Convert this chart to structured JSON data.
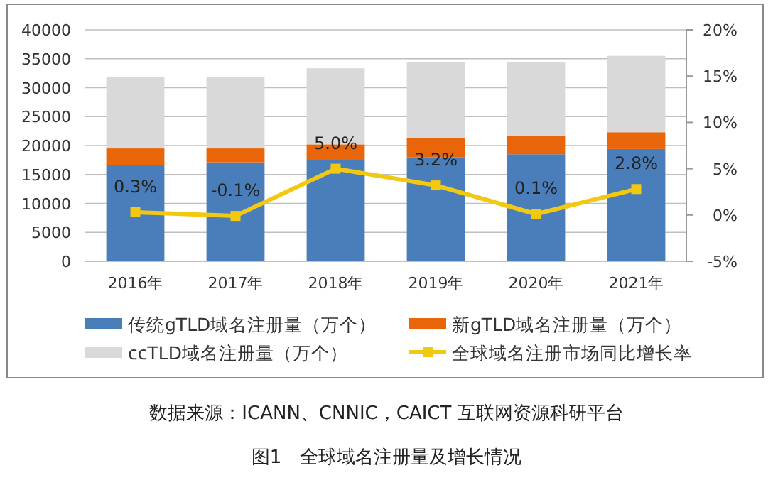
{
  "chart_data": {
    "type": "bar",
    "title": "图1　全球域名注册量及增长情况",
    "annotations": [
      "数据来源：ICANN、CNNIC，CAICT 互联网资源科研平台"
    ],
    "categories": [
      "2016年",
      "2017年",
      "2018年",
      "2019年",
      "2020年",
      "2021年"
    ],
    "stacked": true,
    "grid": "y",
    "legend": "bottom",
    "ylim": [
      0,
      40000
    ],
    "yticks": [
      0,
      5000,
      10000,
      15000,
      20000,
      25000,
      30000,
      35000,
      40000
    ],
    "y2lim": [
      -5,
      20
    ],
    "y2ticks": [
      {
        "value": -5,
        "label": "-5%"
      },
      {
        "value": 0,
        "label": "0%"
      },
      {
        "value": 5,
        "label": "5%"
      },
      {
        "value": 10,
        "label": "10%"
      },
      {
        "value": 15,
        "label": "15%"
      },
      {
        "value": 20,
        "label": "20%"
      }
    ],
    "series": [
      {
        "name": "传统gTLD域名注册量（万个）",
        "color": "#4a7ebb",
        "values": [
          16600,
          17100,
          17500,
          18000,
          18500,
          19400
        ]
      },
      {
        "name": "新gTLD域名注册量（万个）",
        "color": "#e8650a",
        "values": [
          2900,
          2400,
          2700,
          3300,
          3150,
          2900
        ]
      },
      {
        "name": "ccTLD域名注册量（万个）",
        "color": "#d9d9d9",
        "values": [
          12300,
          12300,
          13150,
          13150,
          12800,
          13200
        ]
      },
      {
        "name": "全球域名注册市场同比增长率",
        "type": "line",
        "axis": "y2",
        "color": "#f2c811",
        "marker": "square",
        "values": [
          0.3,
          -0.1,
          5.0,
          3.2,
          0.1,
          2.8
        ],
        "value_labels": [
          "0.3%",
          "-0.1%",
          "5.0%",
          "3.2%",
          "0.1%",
          "2.8%"
        ]
      }
    ]
  }
}
